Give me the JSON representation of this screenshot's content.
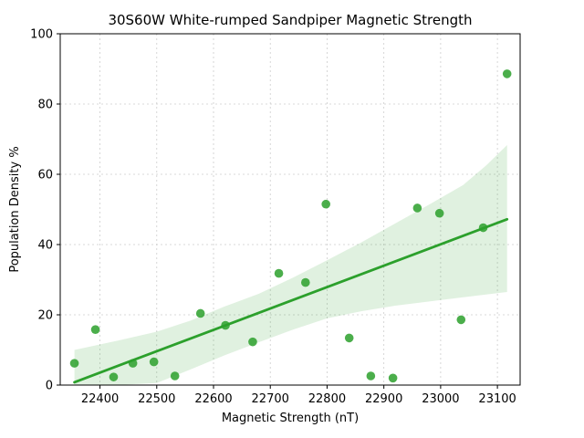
{
  "chart_data": {
    "type": "scatter",
    "title": "30S60W White-rumped Sandpiper Magnetic Strength",
    "xlabel": "Magnetic Strength (nT)",
    "ylabel": "Population Density %",
    "xlim": [
      22330,
      23140
    ],
    "ylim": [
      0,
      100
    ],
    "xticks": [
      22400,
      22500,
      22600,
      22700,
      22800,
      22900,
      23000,
      23100
    ],
    "yticks": [
      0,
      20,
      40,
      60,
      80,
      100
    ],
    "grid": true,
    "color": "#2ca02c",
    "points": [
      {
        "x": 22355,
        "y": 6.2
      },
      {
        "x": 22392,
        "y": 15.8
      },
      {
        "x": 22424,
        "y": 2.3
      },
      {
        "x": 22458,
        "y": 6.2
      },
      {
        "x": 22495,
        "y": 6.6
      },
      {
        "x": 22532,
        "y": 2.6
      },
      {
        "x": 22577,
        "y": 20.4
      },
      {
        "x": 22621,
        "y": 17.0
      },
      {
        "x": 22669,
        "y": 12.3
      },
      {
        "x": 22715,
        "y": 31.8
      },
      {
        "x": 22762,
        "y": 29.2
      },
      {
        "x": 22798,
        "y": 51.5
      },
      {
        "x": 22839,
        "y": 13.4
      },
      {
        "x": 22877,
        "y": 2.6
      },
      {
        "x": 22916,
        "y": 2.0
      },
      {
        "x": 22959,
        "y": 50.4
      },
      {
        "x": 22998,
        "y": 48.9
      },
      {
        "x": 23036,
        "y": 18.6
      },
      {
        "x": 23075,
        "y": 44.8
      },
      {
        "x": 23117,
        "y": 88.6
      }
    ],
    "regression": {
      "x": [
        22355,
        23117
      ],
      "y": [
        0.8,
        47.2
      ]
    },
    "confidence_band": {
      "x": [
        22355,
        22430,
        22500,
        22560,
        22620,
        22680,
        22740,
        22800,
        22860,
        22920,
        22980,
        23040,
        23080,
        23117
      ],
      "upper": [
        10.0,
        12.6,
        15.2,
        18.4,
        22.4,
        26.0,
        30.6,
        35.5,
        40.6,
        46.0,
        51.4,
        57.0,
        62.5,
        68.3
      ],
      "lower": [
        -8.8,
        -3.6,
        0.6,
        4.5,
        8.5,
        12.2,
        15.8,
        19.0,
        21.0,
        22.6,
        23.8,
        25.0,
        25.8,
        26.5
      ]
    }
  }
}
